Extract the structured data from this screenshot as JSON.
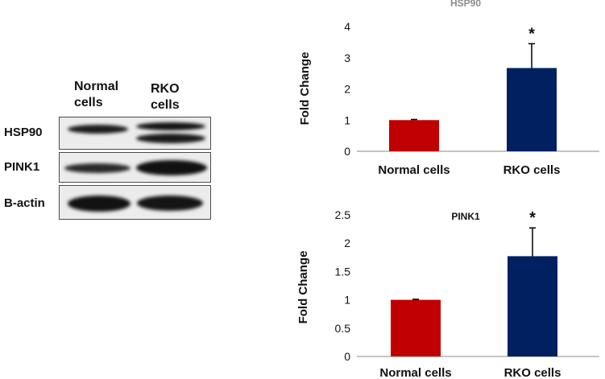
{
  "blot": {
    "columns": [
      "Normal cells",
      "RKO cells"
    ],
    "column_lines": [
      [
        "Normal",
        "cells"
      ],
      [
        "RKO",
        "cells"
      ]
    ],
    "rows": [
      "HSP90",
      "PINK1",
      "B-actin"
    ]
  },
  "colors": {
    "normal_bar": "#c00000",
    "rko_bar": "#002060",
    "axis": "#888888",
    "error_bar": "#000000",
    "hsp90_title": "#8c8c8c"
  },
  "chart_data": [
    {
      "type": "bar",
      "title": "HSP90",
      "ylabel": "Fold Change",
      "xlabel": "",
      "categories": [
        "Normal cells",
        "RKO cells"
      ],
      "values": [
        1.0,
        2.67
      ],
      "errors": [
        0.02,
        0.78
      ],
      "significance": [
        "",
        "*"
      ],
      "ylim": [
        0,
        4
      ],
      "yticks": [
        "0",
        "1",
        "2",
        "3",
        "4"
      ],
      "grid": false
    },
    {
      "type": "bar",
      "title": "PINK1",
      "ylabel": "Fold Change",
      "xlabel": "",
      "categories": [
        "Normal cells",
        "RKO cells"
      ],
      "values": [
        1.0,
        1.77
      ],
      "errors": [
        0.01,
        0.5
      ],
      "significance": [
        "",
        "*"
      ],
      "ylim": [
        0,
        2.5
      ],
      "yticks": [
        "0",
        "0.5",
        "1",
        "1.5",
        "2",
        "2.5"
      ],
      "grid": false
    }
  ]
}
